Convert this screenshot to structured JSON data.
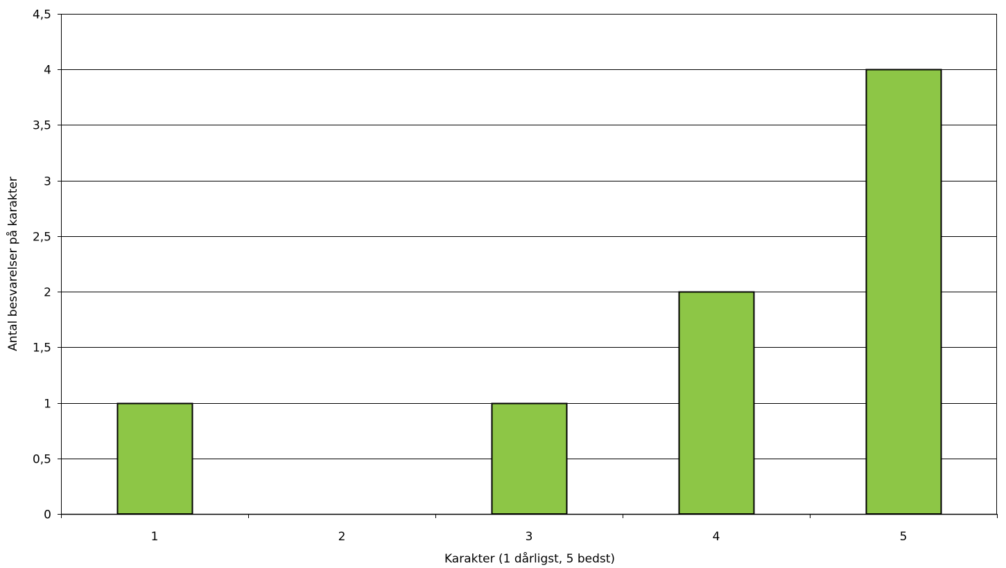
{
  "chart_data": {
    "type": "bar",
    "title": "",
    "xlabel": "Karakter (1 dårligst, 5 bedst)",
    "ylabel": "Antal besvarelser på karakter",
    "categories": [
      "1",
      "2",
      "3",
      "4",
      "5"
    ],
    "values": [
      1,
      0,
      1,
      2,
      4
    ],
    "ylim": [
      0,
      4.5
    ],
    "yticks": [
      0,
      0.5,
      1,
      1.5,
      2,
      2.5,
      3,
      3.5,
      4,
      4.5
    ],
    "ytick_labels": [
      "0",
      "0,5",
      "1",
      "1,5",
      "2",
      "2,5",
      "3",
      "3,5",
      "4",
      "4,5"
    ],
    "grid": true,
    "legend": "none",
    "bar_color": "#8DC646",
    "bar_edge_color": "#000000"
  }
}
